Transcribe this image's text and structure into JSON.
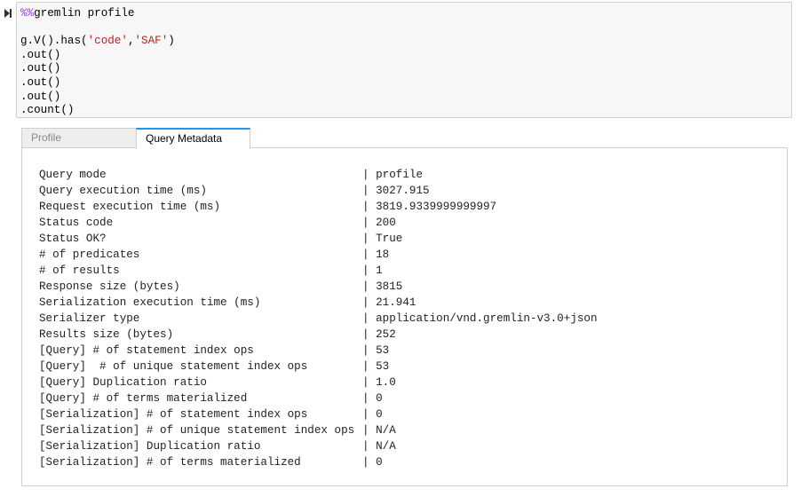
{
  "cell": {
    "magic": "%%",
    "magic_cmd": "gremlin profile",
    "line1_prefix": "g.V().has(",
    "arg1": "'code'",
    "comma": ",",
    "arg2": "'SAF'",
    "line1_suffix": ")",
    "lines": [
      ".out()",
      ".out()",
      ".out()",
      ".out()",
      ".count()"
    ]
  },
  "tabs": [
    {
      "label": "Profile",
      "active": false
    },
    {
      "label": "Query Metadata",
      "active": true
    }
  ],
  "accent": "#2196f3",
  "metadata": [
    {
      "key": "Query mode",
      "value": "profile"
    },
    {
      "key": "Query execution time (ms)",
      "value": "3027.915"
    },
    {
      "key": "Request execution time (ms)",
      "value": "3819.9339999999997"
    },
    {
      "key": "Status code",
      "value": "200"
    },
    {
      "key": "Status OK?",
      "value": "True"
    },
    {
      "key": "# of predicates",
      "value": "18"
    },
    {
      "key": "# of results",
      "value": "1"
    },
    {
      "key": "Response size (bytes)",
      "value": "3815"
    },
    {
      "key": "Serialization execution time (ms)",
      "value": "21.941"
    },
    {
      "key": "Serializer type",
      "value": "application/vnd.gremlin-v3.0+json"
    },
    {
      "key": "Results size (bytes)",
      "value": "252"
    },
    {
      "key": "[Query] # of statement index ops",
      "value": "53"
    },
    {
      "key": "[Query]  # of unique statement index ops",
      "value": "53"
    },
    {
      "key": "[Query] Duplication ratio",
      "value": "1.0"
    },
    {
      "key": "[Query] # of terms materialized",
      "value": "0"
    },
    {
      "key": "[Serialization] # of statement index ops",
      "value": "0"
    },
    {
      "key": "[Serialization] # of unique statement index ops",
      "value": "N/A"
    },
    {
      "key": "[Serialization] Duplication ratio",
      "value": "N/A"
    },
    {
      "key": "[Serialization] # of terms materialized",
      "value": "0"
    }
  ]
}
